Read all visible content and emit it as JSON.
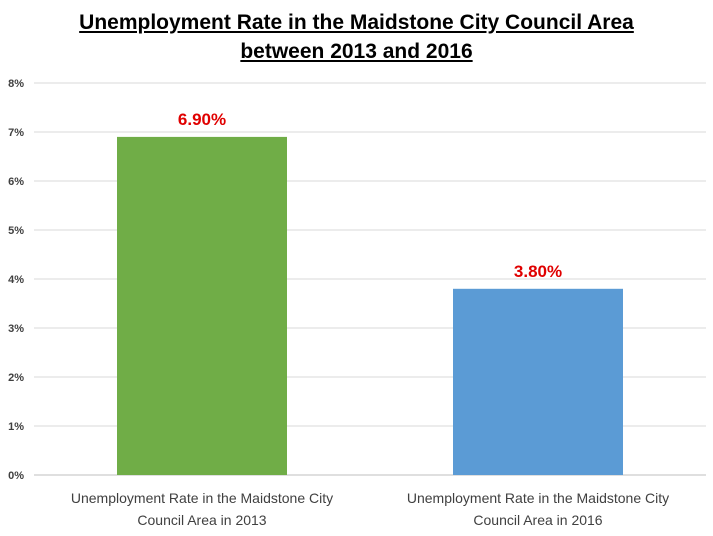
{
  "chart_data": {
    "type": "bar",
    "title_line1": "Unemployment Rate in the Maidstone City Council Area",
    "title_line2": "between 2013 and 2016",
    "categories": [
      [
        "Unemployment Rate in the Maidstone City",
        "Council Area in 2013"
      ],
      [
        "Unemployment Rate in the Maidstone City",
        "Council Area in 2016"
      ]
    ],
    "values": [
      6.9,
      3.8
    ],
    "data_labels": [
      "6.90%",
      "3.80%"
    ],
    "bar_colors": [
      "#70ad47",
      "#5b9bd5"
    ],
    "label_color": "#e00000",
    "ylim": [
      0,
      8
    ],
    "yticks": [
      0,
      1,
      2,
      3,
      4,
      5,
      6,
      7,
      8
    ],
    "ytick_labels": [
      "0%",
      "1%",
      "2%",
      "3%",
      "4%",
      "5%",
      "6%",
      "7%",
      "8%"
    ],
    "grid": true,
    "xlabel": "",
    "ylabel": ""
  }
}
